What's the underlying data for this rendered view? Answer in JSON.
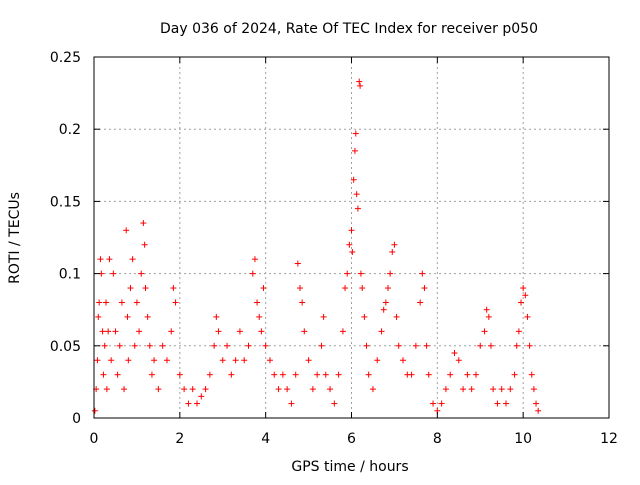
{
  "chart_data": {
    "type": "scatter",
    "title": "Day 036 of 2024, Rate Of TEC Index for receiver p050",
    "xlabel": "GPS time / hours",
    "ylabel": "ROTI / TECUs",
    "xlim": [
      0,
      12
    ],
    "ylim": [
      0,
      0.25
    ],
    "xticks": [
      0,
      2,
      4,
      6,
      8,
      10,
      12
    ],
    "yticks": [
      0,
      0.05,
      0.1,
      0.15,
      0.2,
      0.25
    ],
    "xtick_labels": [
      "0",
      "2",
      "4",
      "6",
      "8",
      "10",
      "12"
    ],
    "ytick_labels": [
      "0",
      "0.05",
      "0.1",
      "0.15",
      "0.2",
      "0.25"
    ],
    "grid": true,
    "marker": "+",
    "color": "#ff0000",
    "series": [
      {
        "name": "ROTI",
        "points": [
          [
            0.02,
            0.005
          ],
          [
            0.05,
            0.02
          ],
          [
            0.08,
            0.04
          ],
          [
            0.1,
            0.07
          ],
          [
            0.12,
            0.08
          ],
          [
            0.15,
            0.11
          ],
          [
            0.17,
            0.1
          ],
          [
            0.2,
            0.06
          ],
          [
            0.22,
            0.03
          ],
          [
            0.25,
            0.05
          ],
          [
            0.28,
            0.08
          ],
          [
            0.3,
            0.02
          ],
          [
            0.33,
            0.06
          ],
          [
            0.36,
            0.11
          ],
          [
            0.4,
            0.04
          ],
          [
            0.45,
            0.1
          ],
          [
            0.5,
            0.06
          ],
          [
            0.55,
            0.03
          ],
          [
            0.6,
            0.05
          ],
          [
            0.65,
            0.08
          ],
          [
            0.7,
            0.02
          ],
          [
            0.75,
            0.13
          ],
          [
            0.78,
            0.07
          ],
          [
            0.8,
            0.04
          ],
          [
            0.85,
            0.09
          ],
          [
            0.9,
            0.11
          ],
          [
            0.95,
            0.05
          ],
          [
            1.0,
            0.08
          ],
          [
            1.05,
            0.06
          ],
          [
            1.1,
            0.1
          ],
          [
            1.15,
            0.135
          ],
          [
            1.18,
            0.12
          ],
          [
            1.2,
            0.09
          ],
          [
            1.25,
            0.07
          ],
          [
            1.3,
            0.05
          ],
          [
            1.35,
            0.03
          ],
          [
            1.4,
            0.04
          ],
          [
            1.5,
            0.02
          ],
          [
            1.6,
            0.05
          ],
          [
            1.7,
            0.04
          ],
          [
            1.8,
            0.06
          ],
          [
            1.85,
            0.09
          ],
          [
            1.9,
            0.08
          ],
          [
            2.0,
            0.03
          ],
          [
            2.1,
            0.02
          ],
          [
            2.2,
            0.01
          ],
          [
            2.3,
            0.02
          ],
          [
            2.4,
            0.01
          ],
          [
            2.5,
            0.015
          ],
          [
            2.6,
            0.02
          ],
          [
            2.7,
            0.03
          ],
          [
            2.8,
            0.05
          ],
          [
            2.85,
            0.07
          ],
          [
            2.9,
            0.06
          ],
          [
            3.0,
            0.04
          ],
          [
            3.1,
            0.05
          ],
          [
            3.2,
            0.03
          ],
          [
            3.3,
            0.04
          ],
          [
            3.4,
            0.06
          ],
          [
            3.5,
            0.04
          ],
          [
            3.6,
            0.05
          ],
          [
            3.7,
            0.1
          ],
          [
            3.75,
            0.11
          ],
          [
            3.8,
            0.08
          ],
          [
            3.85,
            0.07
          ],
          [
            3.9,
            0.06
          ],
          [
            3.95,
            0.09
          ],
          [
            4.0,
            0.05
          ],
          [
            4.1,
            0.04
          ],
          [
            4.2,
            0.03
          ],
          [
            4.3,
            0.02
          ],
          [
            4.4,
            0.03
          ],
          [
            4.5,
            0.02
          ],
          [
            4.6,
            0.01
          ],
          [
            4.7,
            0.03
          ],
          [
            4.75,
            0.107
          ],
          [
            4.8,
            0.09
          ],
          [
            4.85,
            0.08
          ],
          [
            4.9,
            0.06
          ],
          [
            5.0,
            0.04
          ],
          [
            5.1,
            0.02
          ],
          [
            5.2,
            0.03
          ],
          [
            5.3,
            0.05
          ],
          [
            5.35,
            0.07
          ],
          [
            5.4,
            0.03
          ],
          [
            5.5,
            0.02
          ],
          [
            5.6,
            0.01
          ],
          [
            5.7,
            0.03
          ],
          [
            5.8,
            0.06
          ],
          [
            5.85,
            0.09
          ],
          [
            5.9,
            0.1
          ],
          [
            5.95,
            0.12
          ],
          [
            6.0,
            0.13
          ],
          [
            6.02,
            0.115
          ],
          [
            6.05,
            0.165
          ],
          [
            6.08,
            0.185
          ],
          [
            6.1,
            0.197
          ],
          [
            6.12,
            0.155
          ],
          [
            6.15,
            0.145
          ],
          [
            6.18,
            0.233
          ],
          [
            6.2,
            0.23
          ],
          [
            6.22,
            0.1
          ],
          [
            6.25,
            0.09
          ],
          [
            6.3,
            0.07
          ],
          [
            6.35,
            0.05
          ],
          [
            6.4,
            0.03
          ],
          [
            6.5,
            0.02
          ],
          [
            6.6,
            0.04
          ],
          [
            6.7,
            0.06
          ],
          [
            6.75,
            0.075
          ],
          [
            6.8,
            0.08
          ],
          [
            6.85,
            0.09
          ],
          [
            6.9,
            0.1
          ],
          [
            6.95,
            0.115
          ],
          [
            7.0,
            0.12
          ],
          [
            7.05,
            0.07
          ],
          [
            7.1,
            0.05
          ],
          [
            7.2,
            0.04
          ],
          [
            7.3,
            0.03
          ],
          [
            7.4,
            0.03
          ],
          [
            7.5,
            0.05
          ],
          [
            7.6,
            0.08
          ],
          [
            7.65,
            0.1
          ],
          [
            7.7,
            0.09
          ],
          [
            7.75,
            0.05
          ],
          [
            7.8,
            0.03
          ],
          [
            7.9,
            0.01
          ],
          [
            8.0,
            0.005
          ],
          [
            8.1,
            0.01
          ],
          [
            8.2,
            0.02
          ],
          [
            8.3,
            0.03
          ],
          [
            8.4,
            0.045
          ],
          [
            8.5,
            0.04
          ],
          [
            8.6,
            0.02
          ],
          [
            8.7,
            0.03
          ],
          [
            8.8,
            0.02
          ],
          [
            8.9,
            0.03
          ],
          [
            9.0,
            0.05
          ],
          [
            9.1,
            0.06
          ],
          [
            9.15,
            0.075
          ],
          [
            9.2,
            0.07
          ],
          [
            9.25,
            0.05
          ],
          [
            9.3,
            0.02
          ],
          [
            9.4,
            0.01
          ],
          [
            9.5,
            0.02
          ],
          [
            9.6,
            0.01
          ],
          [
            9.7,
            0.02
          ],
          [
            9.8,
            0.03
          ],
          [
            9.85,
            0.05
          ],
          [
            9.9,
            0.06
          ],
          [
            9.95,
            0.08
          ],
          [
            10.0,
            0.09
          ],
          [
            10.05,
            0.085
          ],
          [
            10.1,
            0.07
          ],
          [
            10.15,
            0.05
          ],
          [
            10.2,
            0.03
          ],
          [
            10.25,
            0.02
          ],
          [
            10.3,
            0.01
          ],
          [
            10.35,
            0.005
          ]
        ]
      }
    ]
  }
}
